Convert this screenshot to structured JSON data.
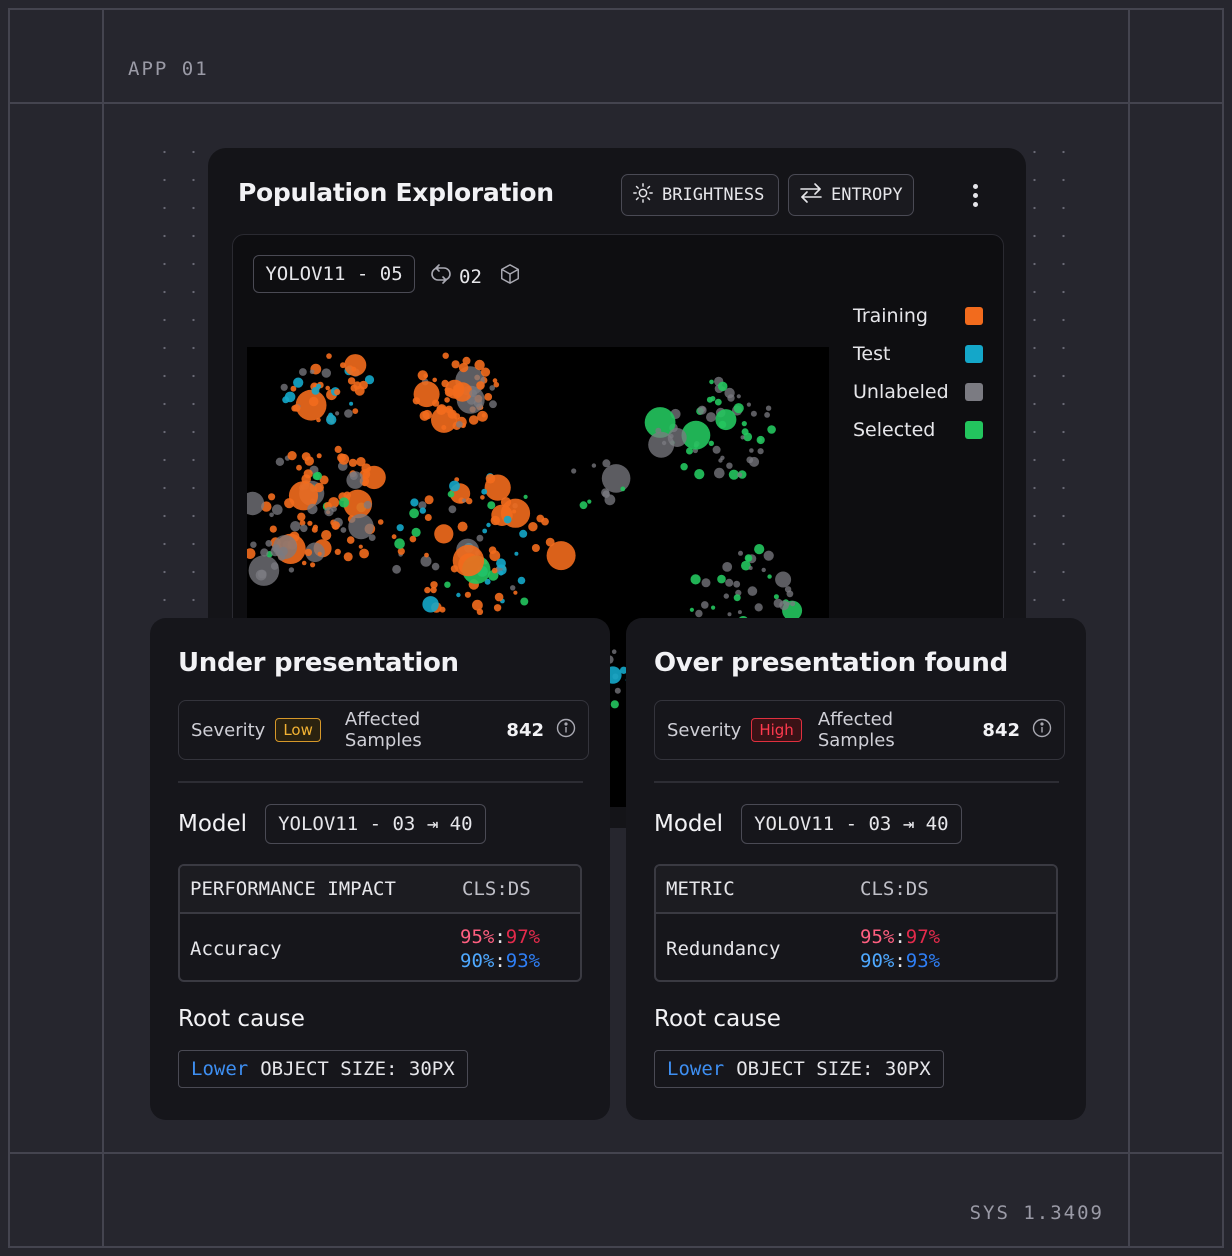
{
  "frame": {
    "app_label": "APP 01",
    "sys_label": "SYS 1.3409"
  },
  "main": {
    "title": "Population Exploration",
    "buttons": [
      {
        "label": "BRIGHTNESS",
        "icon": "sun-icon"
      },
      {
        "label": "ENTROPY",
        "icon": "swap-arrows-icon"
      }
    ],
    "model_tag": "YOLOV11 - 05",
    "cycle_count": "02",
    "legend": [
      {
        "label": "Training",
        "color": "#f26b1d"
      },
      {
        "label": "Test",
        "color": "#14a7c9"
      },
      {
        "label": "Unlabeled",
        "color": "#7b7b82"
      },
      {
        "label": "Selected",
        "color": "#23c55e"
      }
    ]
  },
  "cards": [
    {
      "title": "Under presentation",
      "severity_label": "Severity",
      "severity": "Low",
      "affected_label": "Affected Samples",
      "affected_value": "842",
      "model_label": "Model",
      "model_value": "YOLOV11 - 03 ⇥ 40",
      "table_header": "PERFORMANCE IMPACT",
      "table_header_2": "CLS:DS",
      "metric": "Accuracy",
      "row1_a": "95%",
      "row1_b": "97%",
      "row2_a": "90%",
      "row2_b": "93%",
      "root_label": "Root cause",
      "root_highlight": "Lower",
      "root_text": "OBJECT SIZE: 30PX"
    },
    {
      "title": "Over presentation found",
      "severity_label": "Severity",
      "severity": "High",
      "affected_label": "Affected Samples",
      "affected_value": "842",
      "model_label": "Model",
      "model_value": "YOLOV11 - 03 ⇥ 40",
      "table_header": "METRIC",
      "table_header_2": "CLS:DS",
      "metric": "Redundancy",
      "row1_a": "95%",
      "row1_b": "97%",
      "row2_a": "90%",
      "row2_b": "93%",
      "root_label": "Root cause",
      "root_highlight": "Lower",
      "root_text": "OBJECT SIZE: 30PX"
    }
  ]
}
